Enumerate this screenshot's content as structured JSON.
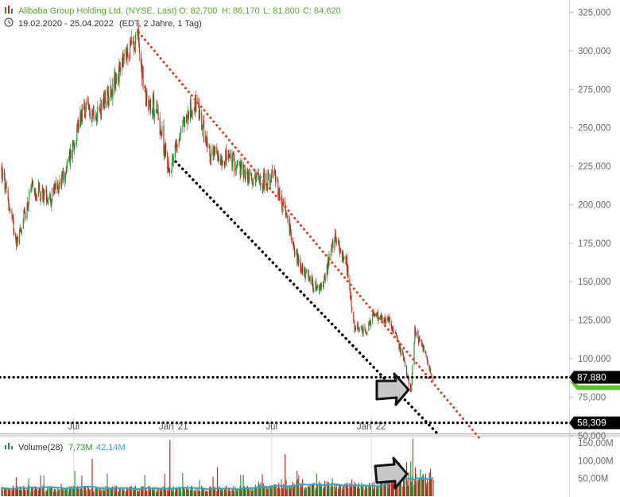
{
  "header": {
    "symbol_name": "Alibaba Group Holding Ltd. (NYSE, Last)",
    "open": "O: 82,700",
    "high": "H: 86,170",
    "low": "L: 81,800",
    "close": "C: 84,620",
    "date_range": "19.02.2020 - 25.04.2022",
    "timezone": "(EDT, 2 Jahre, 1 Tag)"
  },
  "volume_legend": {
    "title": "Volume(28)",
    "value": "7,73M",
    "avg": "42,14M"
  },
  "colors": {
    "up": "#2e8b2e",
    "down": "#c0271f",
    "header_green": "#5aa832",
    "red_trend": "#e23a24",
    "volume_avg": "#3aa0c8",
    "axis_text": "#6a6a6a"
  },
  "chart_data": {
    "type": "candlestick",
    "y_axis": {
      "ticks": [
        325000,
        300000,
        275000,
        250000,
        225000,
        200000,
        175000,
        150000,
        125000,
        100000,
        75000,
        50000
      ],
      "tick_labels": [
        "325,000",
        "300,000",
        "275,000",
        "250,000",
        "225,000",
        "200,000",
        "175,000",
        "150,000",
        "125,000",
        "100,000",
        "75,000",
        "50,000"
      ],
      "range": [
        48000,
        327000
      ]
    },
    "x_axis": {
      "tick_labels": [
        "Jul",
        "Jan '21",
        "Jul",
        "Jan '22"
      ],
      "tick_dates": [
        "2020-07-01",
        "2021-01-01",
        "2021-07-01",
        "2022-01-01"
      ],
      "range": [
        "2020-02-19",
        "2022-04-25"
      ]
    },
    "price_path": [
      {
        "date": "2020-02-19",
        "price": 222000
      },
      {
        "date": "2020-03-18",
        "price": 176000
      },
      {
        "date": "2020-04-15",
        "price": 210000
      },
      {
        "date": "2020-05-20",
        "price": 205000
      },
      {
        "date": "2020-06-15",
        "price": 220000
      },
      {
        "date": "2020-07-15",
        "price": 260000
      },
      {
        "date": "2020-08-20",
        "price": 262000
      },
      {
        "date": "2020-09-15",
        "price": 280000
      },
      {
        "date": "2020-10-27",
        "price": 312000
      },
      {
        "date": "2020-11-10",
        "price": 270000
      },
      {
        "date": "2020-12-01",
        "price": 262000
      },
      {
        "date": "2020-12-24",
        "price": 222000
      },
      {
        "date": "2021-01-15",
        "price": 250000
      },
      {
        "date": "2021-02-10",
        "price": 266000
      },
      {
        "date": "2021-03-10",
        "price": 232000
      },
      {
        "date": "2021-04-15",
        "price": 230000
      },
      {
        "date": "2021-05-20",
        "price": 218000
      },
      {
        "date": "2021-06-15",
        "price": 215000
      },
      {
        "date": "2021-07-08",
        "price": 218000
      },
      {
        "date": "2021-07-27",
        "price": 192000
      },
      {
        "date": "2021-08-20",
        "price": 162000
      },
      {
        "date": "2021-09-15",
        "price": 148000
      },
      {
        "date": "2021-10-01",
        "price": 145000
      },
      {
        "date": "2021-10-25",
        "price": 178000
      },
      {
        "date": "2021-11-15",
        "price": 165000
      },
      {
        "date": "2021-12-01",
        "price": 120000
      },
      {
        "date": "2021-12-22",
        "price": 118000
      },
      {
        "date": "2022-01-05",
        "price": 128000
      },
      {
        "date": "2022-02-05",
        "price": 124000
      },
      {
        "date": "2022-03-01",
        "price": 100000
      },
      {
        "date": "2022-03-15",
        "price": 78000
      },
      {
        "date": "2022-03-22",
        "price": 118000
      },
      {
        "date": "2022-04-10",
        "price": 104000
      },
      {
        "date": "2022-04-25",
        "price": 84620
      }
    ],
    "horizontal_levels": [
      {
        "value": 87880,
        "label": "87,880"
      },
      {
        "value": 58309,
        "label": "58,309"
      }
    ],
    "trend_lines": [
      {
        "style": "red-dotted",
        "from": {
          "date": "2020-10-29",
          "price": 312000
        },
        "to": {
          "date": "2022-07-20",
          "price": 48000
        }
      },
      {
        "style": "black-dotted",
        "from": {
          "date": "2021-01-05",
          "price": 228000
        },
        "to": {
          "date": "2022-05-01",
          "price": 52000
        }
      }
    ],
    "volume_axis": {
      "ticks": [
        150000000,
        100000000,
        50000000
      ],
      "tick_labels": [
        "150,00M",
        "100,00M",
        "50,00M"
      ]
    }
  }
}
